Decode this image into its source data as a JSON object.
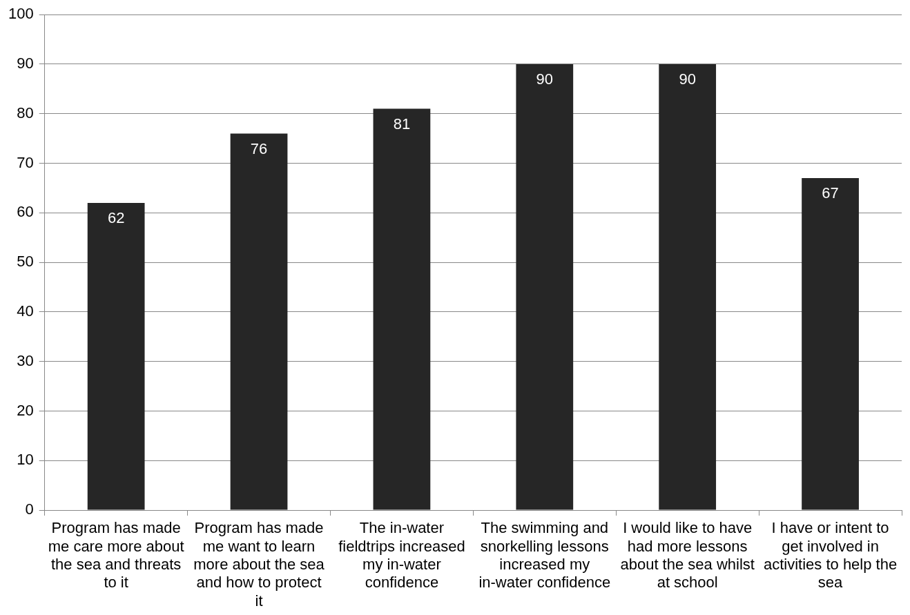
{
  "chart_data": {
    "type": "bar",
    "categories": [
      "Program has made me care more about the sea and threats to it",
      "Program has made me want to learn more about the sea and how to protect it",
      "The in-water fieldtrips increased my in-water confidence",
      "The swimming and snorkelling lessons increased my in-water confidence",
      "I would like to have had more lessons about the sea whilst at school",
      "I have or intent to get involved in activities to help the sea"
    ],
    "values": [
      62,
      76,
      81,
      90,
      90,
      67
    ],
    "color": "#262626",
    "ylim": [
      0,
      100
    ],
    "yticks": [
      0,
      10,
      20,
      30,
      40,
      50,
      60,
      70,
      80,
      90,
      100
    ],
    "grid": "y",
    "legend": false,
    "data_labels": true
  }
}
